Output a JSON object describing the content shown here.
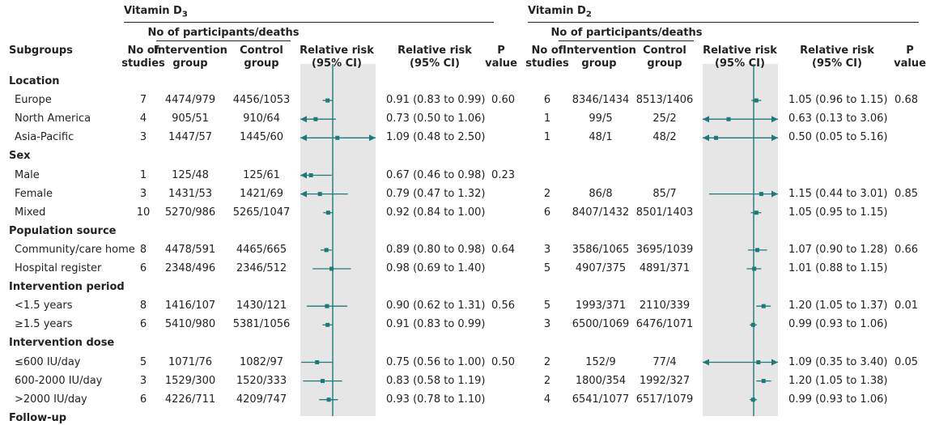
{
  "columns": {
    "subgroups": "Subgroups",
    "no_of_studies": "No of studies",
    "group_header": "No of participants/deaths",
    "intervention": "Intervention group",
    "control": "Control group",
    "rr_plot": "Relative risk (95% CI)",
    "rr_text": "Relative risk (95% CI)",
    "p_value": "P value"
  },
  "panels": {
    "d3": "Vitamin D3",
    "d2": "Vitamin D2"
  },
  "rows": [
    {
      "kind": "section",
      "label": "Location"
    },
    {
      "kind": "row",
      "label": "Europe",
      "d3": {
        "studies": "7",
        "int": "4474/979",
        "ctl": "4456/1053",
        "ci": "0.91 (0.83 to 0.99)",
        "p": "0.60"
      },
      "d2": {
        "studies": "6",
        "int": "8346/1434",
        "ctl": "8513/1406",
        "ci": "1.05 (0.96 to 1.15)",
        "p": "0.68"
      }
    },
    {
      "kind": "row",
      "label": "North America",
      "d3": {
        "studies": "4",
        "int": "905/51",
        "ctl": "910/64",
        "ci": "0.73 (0.50 to 1.06)",
        "p": ""
      },
      "d2": {
        "studies": "1",
        "int": "99/5",
        "ctl": "25/2",
        "ci": "0.63 (0.13 to 3.06)",
        "p": ""
      }
    },
    {
      "kind": "row",
      "label": "Asia-Pacific",
      "d3": {
        "studies": "3",
        "int": "1447/57",
        "ctl": "1445/60",
        "ci": "1.09 (0.48 to 2.50)",
        "p": ""
      },
      "d2": {
        "studies": "1",
        "int": "48/1",
        "ctl": "48/2",
        "ci": "0.50 (0.05 to 5.16)",
        "p": ""
      }
    },
    {
      "kind": "section",
      "label": "Sex"
    },
    {
      "kind": "row",
      "label": "Male",
      "d3": {
        "studies": "1",
        "int": "125/48",
        "ctl": "125/61",
        "ci": "0.67 (0.46 to 0.98)",
        "p": "0.23"
      },
      "d2": null
    },
    {
      "kind": "row",
      "label": "Female",
      "d3": {
        "studies": "3",
        "int": "1431/53",
        "ctl": "1421/69",
        "ci": "0.79 (0.47 to 1.32)",
        "p": ""
      },
      "d2": {
        "studies": "2",
        "int": "86/8",
        "ctl": "85/7",
        "ci": "1.15 (0.44 to 3.01)",
        "p": "0.85"
      }
    },
    {
      "kind": "row",
      "label": "Mixed",
      "d3": {
        "studies": "10",
        "int": "5270/986",
        "ctl": "5265/1047",
        "ci": "0.92 (0.84 to 1.00)",
        "p": ""
      },
      "d2": {
        "studies": "6",
        "int": "8407/1432",
        "ctl": "8501/1403",
        "ci": "1.05 (0.95 to 1.15)",
        "p": ""
      }
    },
    {
      "kind": "section",
      "label": "Population source"
    },
    {
      "kind": "row",
      "label": "Community/care home",
      "d3": {
        "studies": "8",
        "int": "4478/591",
        "ctl": "4465/665",
        "ci": "0.89 (0.80 to 0.98)",
        "p": "0.64"
      },
      "d2": {
        "studies": "3",
        "int": "3586/1065",
        "ctl": "3695/1039",
        "ci": "1.07 (0.90 to 1.28)",
        "p": "0.66"
      }
    },
    {
      "kind": "row",
      "label": "Hospital register",
      "d3": {
        "studies": "6",
        "int": "2348/496",
        "ctl": "2346/512",
        "ci": "0.98 (0.69 to 1.40)",
        "p": ""
      },
      "d2": {
        "studies": "5",
        "int": "4907/375",
        "ctl": "4891/371",
        "ci": "1.01 (0.88 to 1.15)",
        "p": ""
      }
    },
    {
      "kind": "section",
      "label": "Intervention period"
    },
    {
      "kind": "row",
      "label": "<1.5 years",
      "d3": {
        "studies": "8",
        "int": "1416/107",
        "ctl": "1430/121",
        "ci": "0.90 (0.62 to 1.31)",
        "p": "0.56"
      },
      "d2": {
        "studies": "5",
        "int": "1993/371",
        "ctl": "2110/339",
        "ci": "1.20 (1.05 to 1.37)",
        "p": "0.01"
      }
    },
    {
      "kind": "row",
      "label": "≥1.5 years",
      "d3": {
        "studies": "6",
        "int": "5410/980",
        "ctl": "5381/1056",
        "ci": "0.91 (0.83 to 0.99)",
        "p": ""
      },
      "d2": {
        "studies": "3",
        "int": "6500/1069",
        "ctl": "6476/1071",
        "ci": "0.99 (0.93 to 1.06)",
        "p": ""
      }
    },
    {
      "kind": "section",
      "label": "Intervention dose"
    },
    {
      "kind": "row",
      "label": "≤600 IU/day",
      "d3": {
        "studies": "5",
        "int": "1071/76",
        "ctl": "1082/97",
        "ci": "0.75 (0.56 to 1.00)",
        "p": "0.50"
      },
      "d2": {
        "studies": "2",
        "int": "152/9",
        "ctl": "77/4",
        "ci": "1.09 (0.35 to 3.40)",
        "p": "0.05"
      }
    },
    {
      "kind": "row",
      "label": "600-2000 IU/day",
      "d3": {
        "studies": "3",
        "int": "1529/300",
        "ctl": "1520/333",
        "ci": "0.83 (0.58 to 1.19)",
        "p": ""
      },
      "d2": {
        "studies": "2",
        "int": "1800/354",
        "ctl": "1992/327",
        "ci": "1.20 (1.05 to 1.38)",
        "p": ""
      }
    },
    {
      "kind": "row",
      "label": ">2000 IU/day",
      "d3": {
        "studies": "6",
        "int": "4226/711",
        "ctl": "4209/747",
        "ci": "0.93 (0.78 to 1.10)",
        "p": ""
      },
      "d2": {
        "studies": "4",
        "int": "6541/1077",
        "ctl": "6517/1079",
        "ci": "0.99 (0.93 to 1.06)",
        "p": ""
      }
    },
    {
      "kind": "section",
      "label": "Follow-up"
    }
  ],
  "chart_data": [
    {
      "type": "forest",
      "scale": "log",
      "reference_line": 1.0,
      "xlim": [
        0.5,
        2.0
      ],
      "marker_color": "#1d7a7a",
      "series": [
        {
          "label": "Europe",
          "estimate": 0.91,
          "lower": 0.83,
          "upper": 0.99
        },
        {
          "label": "North America",
          "estimate": 0.73,
          "lower": 0.5,
          "upper": 1.06
        },
        {
          "label": "Asia-Pacific",
          "estimate": 1.09,
          "lower": 0.48,
          "upper": 2.5
        },
        {
          "label": "Male",
          "estimate": 0.67,
          "lower": 0.46,
          "upper": 0.98
        },
        {
          "label": "Female",
          "estimate": 0.79,
          "lower": 0.47,
          "upper": 1.32
        },
        {
          "label": "Mixed",
          "estimate": 0.92,
          "lower": 0.84,
          "upper": 1.0
        },
        {
          "label": "Community/care home",
          "estimate": 0.89,
          "lower": 0.8,
          "upper": 0.98
        },
        {
          "label": "Hospital register",
          "estimate": 0.98,
          "lower": 0.69,
          "upper": 1.4
        },
        {
          "label": "<1.5 years",
          "estimate": 0.9,
          "lower": 0.62,
          "upper": 1.31
        },
        {
          "label": "≥1.5 years",
          "estimate": 0.91,
          "lower": 0.83,
          "upper": 0.99
        },
        {
          "label": "≤600 IU/day",
          "estimate": 0.75,
          "lower": 0.56,
          "upper": 1.0
        },
        {
          "label": "600-2000 IU/day",
          "estimate": 0.83,
          "lower": 0.58,
          "upper": 1.19
        },
        {
          "label": ">2000 IU/day",
          "estimate": 0.93,
          "lower": 0.78,
          "upper": 1.1
        }
      ]
    },
    {
      "type": "forest",
      "scale": "log",
      "reference_line": 1.0,
      "xlim": [
        0.5,
        2.0
      ],
      "marker_color": "#1d7a7a",
      "series": [
        {
          "label": "Europe",
          "estimate": 1.05,
          "lower": 0.96,
          "upper": 1.15
        },
        {
          "label": "North America",
          "estimate": 0.63,
          "lower": 0.13,
          "upper": 3.06
        },
        {
          "label": "Asia-Pacific",
          "estimate": 0.5,
          "lower": 0.05,
          "upper": 5.16
        },
        {
          "label": "Female",
          "estimate": 1.15,
          "lower": 0.44,
          "upper": 3.01
        },
        {
          "label": "Mixed",
          "estimate": 1.05,
          "lower": 0.95,
          "upper": 1.15
        },
        {
          "label": "Community/care home",
          "estimate": 1.07,
          "lower": 0.9,
          "upper": 1.28
        },
        {
          "label": "Hospital register",
          "estimate": 1.01,
          "lower": 0.88,
          "upper": 1.15
        },
        {
          "label": "<1.5 years",
          "estimate": 1.2,
          "lower": 1.05,
          "upper": 1.37
        },
        {
          "label": "≥1.5 years",
          "estimate": 0.99,
          "lower": 0.93,
          "upper": 1.06
        },
        {
          "label": "≤600 IU/day",
          "estimate": 1.09,
          "lower": 0.35,
          "upper": 3.4
        },
        {
          "label": "600-2000 IU/day",
          "estimate": 1.2,
          "lower": 1.05,
          "upper": 1.38
        },
        {
          "label": ">2000 IU/day",
          "estimate": 0.99,
          "lower": 0.93,
          "upper": 1.06
        }
      ]
    }
  ]
}
